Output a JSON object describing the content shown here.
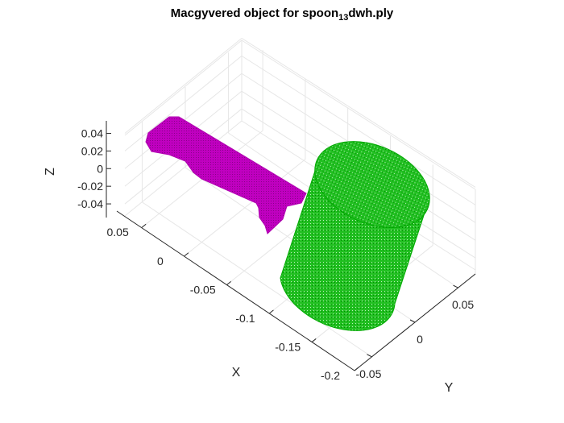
{
  "figure": {
    "title_main": "Macgyvered object for spoon",
    "title_subscript": "13",
    "title_suffix": "dwh.ply"
  },
  "colors": {
    "spoon": "#b000b0",
    "cylinder": "#00b400",
    "grid": "#e6e6e6",
    "axis": "#262626"
  },
  "chart_data": {
    "type": "scatter3d",
    "xlabel": "X",
    "ylabel": "Y",
    "zlabel": "Z",
    "xlim": [
      -0.2,
      0.07
    ],
    "ylim": [
      -0.07,
      0.07
    ],
    "zlim": [
      -0.05,
      0.045
    ],
    "x_ticks": [
      0.05,
      0,
      -0.05,
      -0.1,
      -0.15,
      -0.2
    ],
    "x_tick_labels": [
      "0.05",
      "0",
      "-0.05",
      "-0.1",
      "-0.15",
      "-0.2"
    ],
    "y_ticks": [
      -0.05,
      0,
      0.05
    ],
    "y_tick_labels": [
      "-0.05",
      "0",
      "0.05"
    ],
    "z_ticks": [
      0.04,
      0.02,
      0,
      -0.02,
      -0.04
    ],
    "z_tick_labels": [
      "0.04",
      "0.02",
      "0",
      "-0.02",
      "-0.04"
    ],
    "grid": true,
    "series": [
      {
        "shape": "spoon-handle",
        "color": "#b000b0",
        "x_range": [
          -0.01,
          0.06
        ],
        "y_range": [
          -0.07,
          0.01
        ]
      },
      {
        "shape": "cylinder",
        "color": "#00b400",
        "x_range": [
          -0.2,
          -0.08
        ],
        "y_range": [
          -0.05,
          0.05
        ]
      }
    ]
  }
}
